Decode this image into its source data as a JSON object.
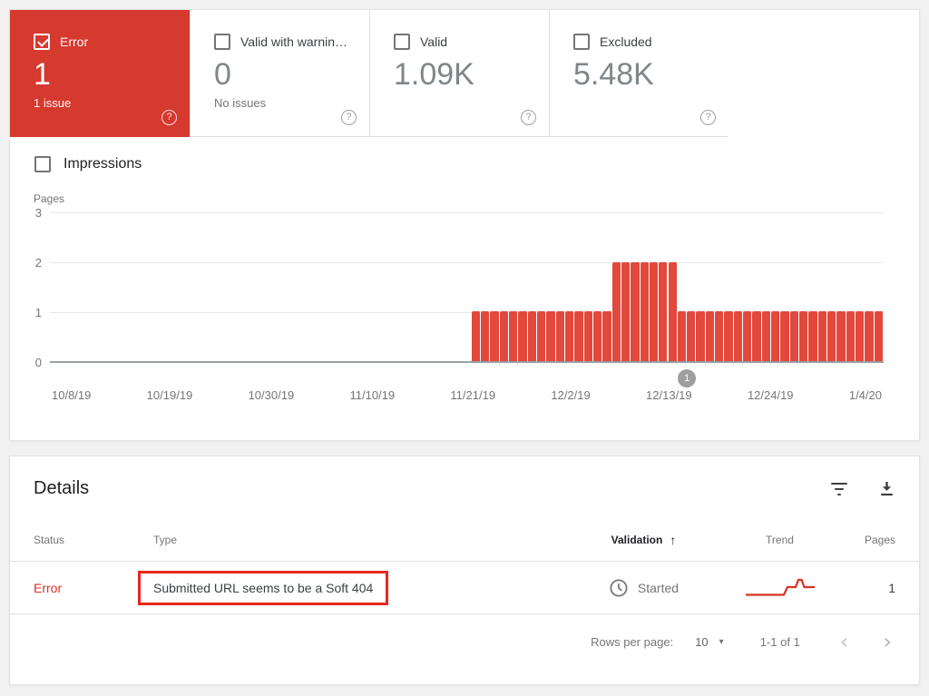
{
  "cards": [
    {
      "label": "Error",
      "value": "1",
      "sub": "1 issue",
      "checked": true,
      "selected": true
    },
    {
      "label": "Valid with warnin…",
      "value": "0",
      "sub": "No issues",
      "checked": false,
      "selected": false
    },
    {
      "label": "Valid",
      "value": "1.09K",
      "sub": "",
      "checked": false,
      "selected": false
    },
    {
      "label": "Excluded",
      "value": "5.48K",
      "sub": "",
      "checked": false,
      "selected": false
    }
  ],
  "impressions": {
    "label": "Impressions",
    "checked": false
  },
  "chart_data": {
    "type": "bar",
    "title": "",
    "ylabel": "Pages",
    "ylim": [
      0,
      3
    ],
    "yticks": [
      3,
      2,
      1,
      0
    ],
    "grid": true,
    "x_tick_labels": [
      "10/8/19",
      "10/19/19",
      "10/30/19",
      "11/10/19",
      "11/21/19",
      "12/2/19",
      "12/13/19",
      "12/24/19",
      "1/4/20"
    ],
    "x_domain_days": 89,
    "bar_color": "#e2483b",
    "bars": {
      "start_day": 45,
      "values": [
        1,
        1,
        1,
        1,
        1,
        1,
        1,
        1,
        1,
        1,
        1,
        1,
        1,
        1,
        1,
        2,
        2,
        2,
        2,
        2,
        2,
        2,
        1,
        1,
        1,
        1,
        1,
        1,
        1,
        1,
        1,
        1,
        1,
        1,
        1,
        1,
        1,
        1,
        1,
        1,
        1,
        1,
        1,
        1
      ]
    },
    "marker": {
      "label": "1",
      "day": 68
    }
  },
  "details": {
    "title": "Details",
    "columns": [
      "Status",
      "Type",
      "Validation",
      "Trend",
      "Pages"
    ],
    "sort_column": "Validation",
    "sort_direction": "ascending",
    "rows": [
      {
        "status": "Error",
        "type": "Submitted URL seems to be a Soft 404",
        "validation": "Started",
        "pages": "1"
      }
    ],
    "pagination": {
      "rows_per_page_label": "Rows per page:",
      "rows_per_page": "10",
      "range": "1-1 of 1"
    }
  },
  "icons": {
    "help": "?",
    "sort_asc": "↑",
    "dropdown": "▾",
    "prev": "‹",
    "next": "›"
  },
  "colors": {
    "error_card": "#d6392e",
    "bar": "#e2483b",
    "annotation_border": "#e8291e",
    "error_text": "#d93025",
    "marker": "#9e9e9e"
  }
}
